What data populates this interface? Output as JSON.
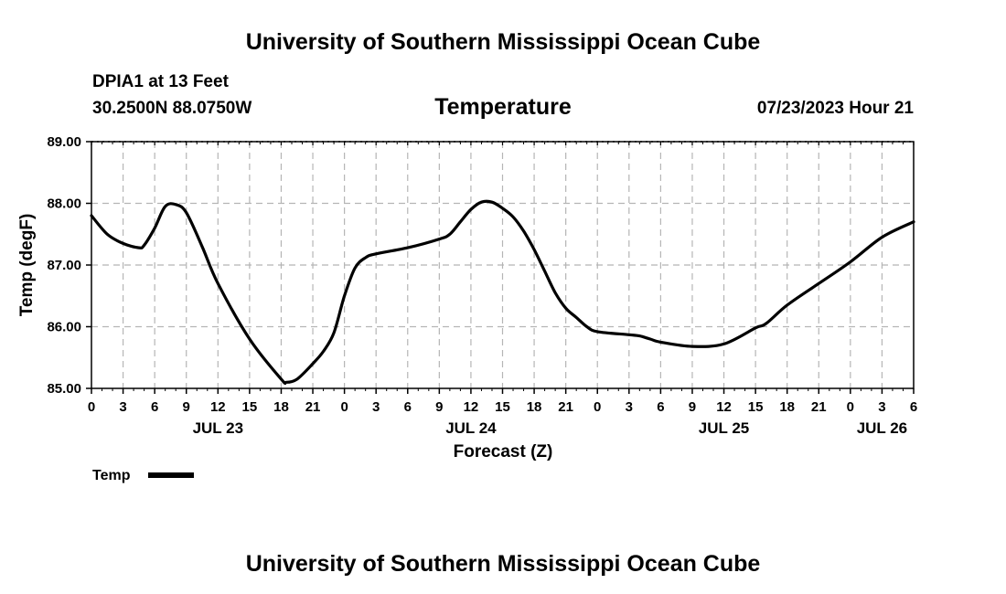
{
  "page": {
    "title": "University of Southern Mississippi Ocean Cube",
    "footer_title": "University of Southern Mississippi Ocean Cube"
  },
  "chart_data": {
    "type": "line",
    "title": "Temperature",
    "station": "DPIA1 at 13 Feet",
    "coordinates": "30.2500N  88.0750W",
    "issued": "07/23/2023 Hour 21",
    "xlabel": "Forecast (Z)",
    "ylabel": "Temp (degF)",
    "xlim": [
      0,
      78
    ],
    "ylim": [
      85.0,
      89.0
    ],
    "y_ticks": [
      "85.00",
      "86.00",
      "87.00",
      "88.00",
      "89.00"
    ],
    "x_tick_hours": [
      0,
      3,
      6,
      9,
      12,
      15,
      18,
      21,
      24,
      27,
      30,
      33,
      36,
      39,
      42,
      45,
      48,
      51,
      54,
      57,
      60,
      63,
      66,
      69,
      72,
      75,
      78
    ],
    "x_tick_labels": [
      "0",
      "3",
      "6",
      "9",
      "12",
      "15",
      "18",
      "21",
      "0",
      "3",
      "6",
      "9",
      "12",
      "15",
      "18",
      "21",
      "0",
      "3",
      "6",
      "9",
      "12",
      "15",
      "18",
      "21",
      "0",
      "3",
      "6"
    ],
    "day_labels": [
      {
        "label": "JUL 23",
        "hour": 12
      },
      {
        "label": "JUL 24",
        "hour": 36
      },
      {
        "label": "JUL 25",
        "hour": 60
      },
      {
        "label": "JUL 26",
        "hour": 75
      }
    ],
    "grid": true,
    "legend": "bottom-left",
    "series": [
      {
        "name": "Temp",
        "color": "#000000",
        "x": [
          0,
          1.5,
          3,
          4.5,
          5,
          6,
          7,
          8,
          9,
          10.5,
          12,
          15,
          18,
          18.5,
          19.5,
          21,
          22,
          23,
          24,
          25,
          26,
          27,
          30,
          33,
          34,
          35,
          36,
          37,
          38,
          39,
          40,
          41,
          42,
          43,
          44,
          45,
          46,
          47,
          48,
          51,
          52,
          53,
          54,
          57,
          60,
          63,
          64,
          66,
          69,
          72,
          75,
          78
        ],
        "values": [
          87.8,
          87.5,
          87.35,
          87.28,
          87.32,
          87.6,
          87.95,
          87.98,
          87.85,
          87.3,
          86.7,
          85.8,
          85.15,
          85.1,
          85.15,
          85.4,
          85.6,
          85.9,
          86.5,
          86.95,
          87.12,
          87.18,
          87.28,
          87.42,
          87.5,
          87.7,
          87.9,
          88.02,
          88.02,
          87.92,
          87.78,
          87.55,
          87.25,
          86.9,
          86.55,
          86.3,
          86.15,
          86.0,
          85.92,
          85.87,
          85.85,
          85.8,
          85.75,
          85.68,
          85.72,
          85.98,
          86.05,
          86.35,
          86.7,
          87.05,
          87.45,
          87.7
        ]
      }
    ]
  }
}
